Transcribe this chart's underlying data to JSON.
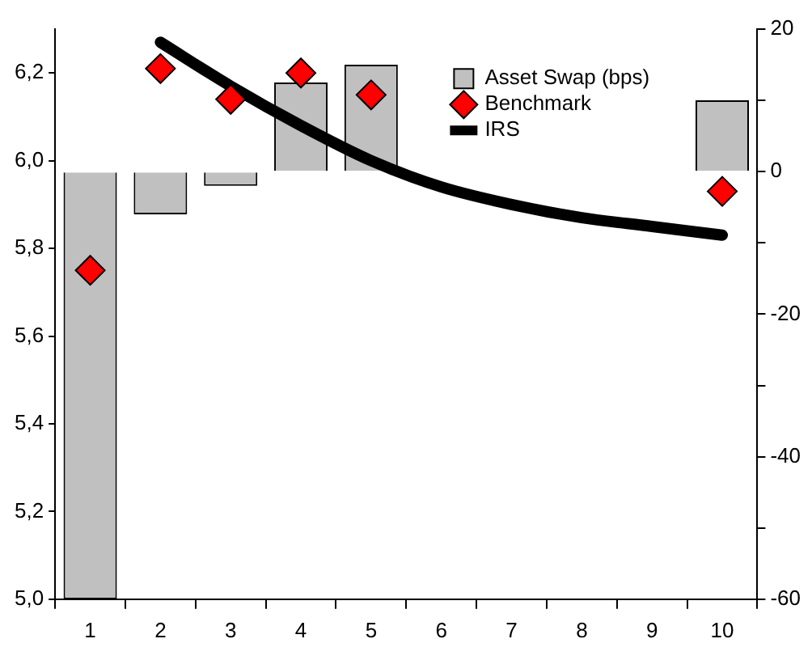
{
  "chart_data": {
    "type": "bar",
    "categories": [
      "1",
      "2",
      "3",
      "4",
      "5",
      "6",
      "7",
      "8",
      "9",
      "10"
    ],
    "series": [
      {
        "name": "Asset Swap (bps)",
        "type": "bar",
        "axis": "y2",
        "color": "#c0c0c0",
        "values": [
          -60,
          -6,
          -2,
          12.5,
          15,
          null,
          null,
          null,
          null,
          10
        ]
      },
      {
        "name": "Benchmark",
        "type": "scatter",
        "marker": "diamond",
        "color": "#ff0000",
        "values": [
          5.75,
          6.21,
          6.14,
          6.2,
          6.15,
          null,
          null,
          null,
          null,
          5.93
        ]
      },
      {
        "name": "IRS",
        "type": "line",
        "marker": "none",
        "color": "#000000",
        "values": [
          null,
          6.27,
          6.17,
          6.08,
          6.0,
          5.94,
          5.9,
          5.87,
          5.85,
          5.83
        ]
      }
    ],
    "ylim": [
      5.0,
      6.3
    ],
    "yticks": [
      {
        "value": 5.0,
        "label": "5,0"
      },
      {
        "value": 5.2,
        "label": "5,2"
      },
      {
        "value": 5.4,
        "label": "5,4"
      },
      {
        "value": 5.6,
        "label": "5,6"
      },
      {
        "value": 5.8,
        "label": "5,8"
      },
      {
        "value": 6.0,
        "label": "6,0"
      },
      {
        "value": 6.2,
        "label": "6,2"
      }
    ],
    "y2lim": [
      -60,
      20
    ],
    "y2ticks": [
      -60,
      {
        "value": -50,
        "label": null
      },
      -40,
      {
        "value": -30,
        "label": null
      },
      -20,
      {
        "value": -10,
        "label": null
      },
      0,
      {
        "value": 10,
        "label": null
      },
      20
    ],
    "legend": "top right",
    "grid": false
  }
}
